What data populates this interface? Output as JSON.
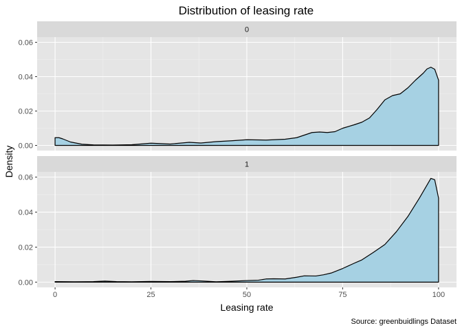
{
  "chart_data": {
    "type": "area",
    "title": "Distribution of leasing rate",
    "xlabel": "Leasing rate",
    "ylabel": "Density",
    "caption": "Source: greenbuidlings Dataset",
    "xlim": [
      0,
      100
    ],
    "ylim": [
      0,
      0.06
    ],
    "x_ticks": [
      0,
      25,
      50,
      75,
      100
    ],
    "y_ticks": [
      "0.00",
      "0.02",
      "0.04",
      "0.06"
    ],
    "grid": true,
    "colors": {
      "panel_bg": "#e5e5e5",
      "strip_bg": "#d9d9d9",
      "grid_major": "#ffffff",
      "fill": "#a6d1e3",
      "line": "#000000"
    },
    "panels": [
      {
        "label": "0",
        "x": [
          0,
          1,
          2,
          4,
          7,
          10,
          15,
          20,
          25,
          30,
          35,
          38,
          42,
          46,
          50,
          55,
          60,
          63,
          65,
          67,
          69,
          71,
          73,
          75,
          78,
          80,
          82,
          84,
          86,
          88,
          90,
          92,
          94,
          96,
          97,
          98,
          99,
          100
        ],
        "y": [
          0.0045,
          0.0045,
          0.0038,
          0.002,
          0.0007,
          0.0003,
          0.0002,
          0.0004,
          0.0013,
          0.0008,
          0.0018,
          0.0014,
          0.0022,
          0.0027,
          0.0033,
          0.0031,
          0.0036,
          0.0045,
          0.006,
          0.0075,
          0.0078,
          0.0075,
          0.008,
          0.01,
          0.012,
          0.0135,
          0.016,
          0.021,
          0.0265,
          0.029,
          0.03,
          0.0335,
          0.038,
          0.042,
          0.0445,
          0.0455,
          0.0443,
          0.038
        ]
      },
      {
        "label": "1",
        "x": [
          0,
          5,
          10,
          13,
          16,
          20,
          25,
          30,
          34,
          36,
          38,
          42,
          46,
          50,
          53,
          55,
          57,
          60,
          63,
          65,
          68,
          70,
          72,
          75,
          78,
          80,
          83,
          86,
          89,
          92,
          95,
          97,
          98,
          99,
          100
        ],
        "y": [
          0.0003,
          0.0002,
          0.0003,
          0.0006,
          0.0003,
          0.0002,
          0.0004,
          0.0003,
          0.0005,
          0.0009,
          0.0007,
          0.0002,
          0.0005,
          0.0009,
          0.0011,
          0.0018,
          0.0019,
          0.0018,
          0.0028,
          0.0036,
          0.0035,
          0.0042,
          0.0052,
          0.0078,
          0.0108,
          0.0127,
          0.017,
          0.0215,
          0.0288,
          0.0375,
          0.048,
          0.0555,
          0.0593,
          0.0585,
          0.048
        ]
      }
    ]
  }
}
